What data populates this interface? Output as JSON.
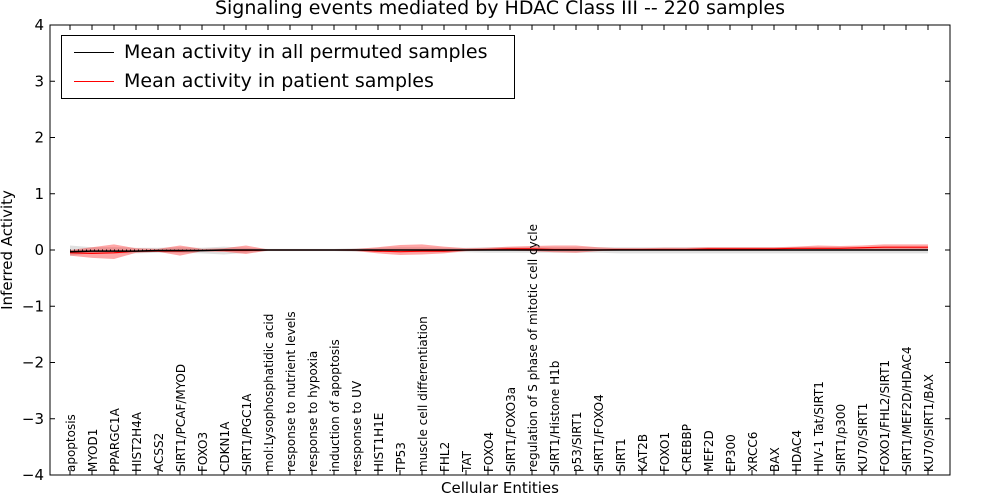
{
  "chart_data": {
    "type": "line",
    "title": "Signaling events mediated by HDAC Class III -- 220 samples",
    "xlabel": "Cellular Entities",
    "ylabel": "Inferred Activity",
    "ylim": [
      -4,
      4
    ],
    "yticks": [
      4,
      3,
      2,
      1,
      0,
      -1,
      -2,
      -3,
      -4
    ],
    "ytick_labels": [
      "4",
      "3",
      "2",
      "1",
      "0",
      "−1",
      "−2",
      "−3",
      "−4"
    ],
    "legend_position": "top-left",
    "categories": [
      "apoptosis",
      "MYOD1",
      "PPARGC1A",
      "HIST2H4A",
      "ACSS2",
      "SIRT1/PCAF/MYOD",
      "FOXO3",
      "CDKN1A",
      "SIRT1/PGC1A",
      "mol:Lysophosphatidic acid",
      "response to nutrient levels",
      "response to hypoxia",
      "induction of apoptosis",
      "response to UV",
      "HIST1H1E",
      "TP53",
      "muscle cell differentiation",
      "FHL2",
      "TAT",
      "FOXO4",
      "SIRT1/FOXO3a",
      "regulation of S phase of mitotic cell cycle",
      "SIRT1/Histone H1b",
      "p53/SIRT1",
      "SIRT1/FOXO4",
      "SIRT1",
      "KAT2B",
      "FOXO1",
      "CREBBP",
      "MEF2D",
      "EP300",
      "XRCC6",
      "BAX",
      "HDAC4",
      "HIV-1 Tat/SIRT1",
      "SIRT1/p300",
      "KU70/SIRT1",
      "FOXO1/FHL2/SIRT1",
      "SIRT1/MEF2D/HDAC4",
      "KU70/SIRT1/BAX"
    ],
    "series": [
      {
        "name": "Mean activity in all permuted samples",
        "color": "#000000",
        "values": [
          -0.03,
          -0.02,
          -0.02,
          -0.02,
          -0.01,
          -0.01,
          -0.01,
          0,
          0,
          0,
          0,
          0,
          0,
          0,
          0,
          0,
          0,
          0,
          0,
          0,
          0,
          0,
          0,
          0,
          0,
          0,
          0,
          0,
          0,
          0,
          0,
          0,
          0,
          0,
          0,
          0,
          0,
          0,
          0,
          0
        ],
        "band_low": [
          -0.1,
          -0.06,
          -0.06,
          -0.06,
          -0.05,
          -0.05,
          -0.06,
          -0.08,
          -0.05,
          -0.02,
          -0.02,
          -0.02,
          -0.02,
          -0.03,
          -0.03,
          -0.04,
          -0.04,
          -0.04,
          -0.04,
          -0.05,
          -0.05,
          -0.05,
          -0.05,
          -0.05,
          -0.05,
          -0.06,
          -0.06,
          -0.06,
          -0.06,
          -0.06,
          -0.06,
          -0.06,
          -0.06,
          -0.06,
          -0.06,
          -0.06,
          -0.06,
          -0.06,
          -0.06,
          -0.06
        ],
        "band_high": [
          0.08,
          0.05,
          0.05,
          0.04,
          0.04,
          0.05,
          0.04,
          0.06,
          0.04,
          0.02,
          0.02,
          0.02,
          0.02,
          0.03,
          0.04,
          0.05,
          0.05,
          0.04,
          0.04,
          0.05,
          0.05,
          0.05,
          0.05,
          0.05,
          0.05,
          0.05,
          0.05,
          0.05,
          0.05,
          0.05,
          0.05,
          0.05,
          0.05,
          0.05,
          0.05,
          0.05,
          0.05,
          0.05,
          0.05,
          0.05
        ]
      },
      {
        "name": "Mean activity in patient samples",
        "color": "#ff0000",
        "values": [
          -0.05,
          -0.06,
          -0.05,
          -0.02,
          -0.02,
          -0.02,
          -0.01,
          -0.01,
          -0.01,
          0,
          0,
          0,
          0,
          0,
          -0.02,
          -0.03,
          -0.02,
          -0.02,
          0,
          0.01,
          0.02,
          0.02,
          0.01,
          0.01,
          0,
          0.01,
          0.01,
          0.01,
          0.01,
          0.02,
          0.02,
          0.02,
          0.02,
          0.03,
          0.03,
          0.03,
          0.04,
          0.05,
          0.05,
          0.05
        ],
        "band_low": [
          -0.1,
          -0.14,
          -0.16,
          -0.05,
          -0.03,
          -0.1,
          -0.02,
          -0.03,
          -0.07,
          -0.01,
          -0.01,
          -0.01,
          -0.01,
          -0.02,
          -0.06,
          -0.09,
          -0.08,
          -0.06,
          -0.02,
          -0.01,
          -0.01,
          -0.02,
          -0.04,
          -0.05,
          -0.02,
          -0.01,
          -0.01,
          -0.01,
          -0.01,
          -0.01,
          -0.01,
          -0.01,
          -0.01,
          0,
          0,
          0,
          0,
          0,
          0.01,
          0.01
        ],
        "band_high": [
          0,
          0.05,
          0.1,
          0.03,
          0.02,
          0.08,
          0.02,
          0.03,
          0.08,
          0.01,
          0.01,
          0.01,
          0.01,
          0.02,
          0.05,
          0.09,
          0.1,
          0.06,
          0.03,
          0.04,
          0.06,
          0.07,
          0.08,
          0.08,
          0.05,
          0.03,
          0.03,
          0.04,
          0.04,
          0.05,
          0.05,
          0.05,
          0.05,
          0.06,
          0.08,
          0.07,
          0.08,
          0.1,
          0.1,
          0.1
        ]
      }
    ]
  }
}
